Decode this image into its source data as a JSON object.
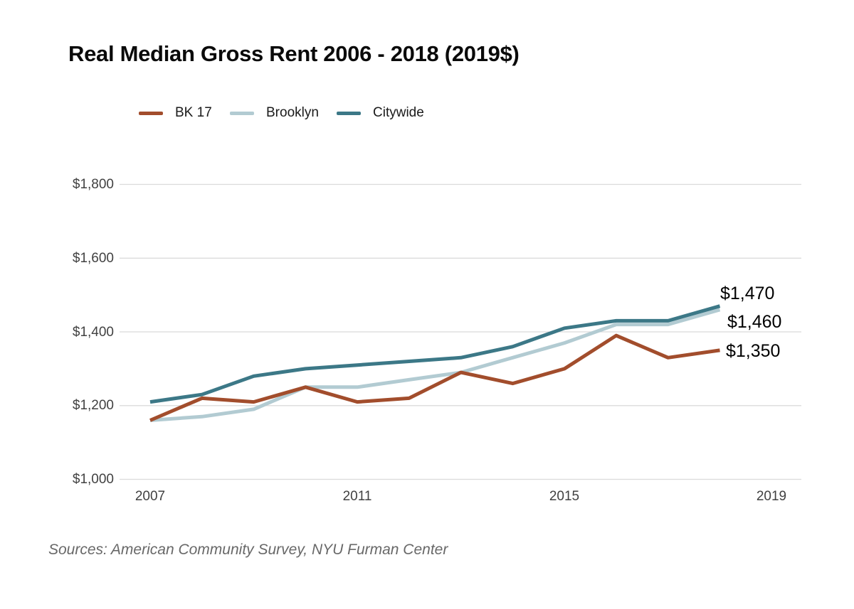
{
  "title": "Real Median Gross Rent 2006 - 2018 (2019$)",
  "source_note": "Sources: American Community Survey, NYU Furman Center",
  "legend": [
    {
      "label": "BK 17",
      "color": "#A24D2C"
    },
    {
      "label": "Brooklyn",
      "color": "#B2CBD2"
    },
    {
      "label": "Citywide",
      "color": "#3C7887"
    }
  ],
  "chart_data": {
    "type": "line",
    "title": "Real Median Gross Rent 2006 - 2018 (2019$)",
    "x": [
      2007,
      2008,
      2009,
      2010,
      2011,
      2012,
      2013,
      2014,
      2015,
      2016,
      2017,
      2018
    ],
    "x_tick_years": [
      2007,
      2011,
      2015,
      2019
    ],
    "x_tick_labels": [
      "2007",
      "2011",
      "2015",
      "2019"
    ],
    "y_ticks": [
      1800,
      1600,
      1400,
      1200,
      1000
    ],
    "y_tick_labels": [
      "$1,800",
      "$1,600",
      "$1,400",
      "$1,200",
      "$1,000"
    ],
    "ylim": [
      1000,
      1800
    ],
    "grid": true,
    "legend_position": "top",
    "series": [
      {
        "name": "BK 17",
        "color": "#A24D2C",
        "values": [
          1160,
          1220,
          1210,
          1250,
          1210,
          1220,
          1290,
          1260,
          1300,
          1390,
          1330,
          1350
        ],
        "end_label": "$1,350"
      },
      {
        "name": "Brooklyn",
        "color": "#B2CBD2",
        "values": [
          1160,
          1170,
          1190,
          1250,
          1250,
          1270,
          1290,
          1330,
          1370,
          1420,
          1420,
          1460
        ],
        "end_label": "$1,460"
      },
      {
        "name": "Citywide",
        "color": "#3C7887",
        "values": [
          1210,
          1230,
          1280,
          1300,
          1310,
          1320,
          1330,
          1360,
          1410,
          1430,
          1430,
          1470
        ],
        "end_label": "$1,470"
      }
    ]
  }
}
